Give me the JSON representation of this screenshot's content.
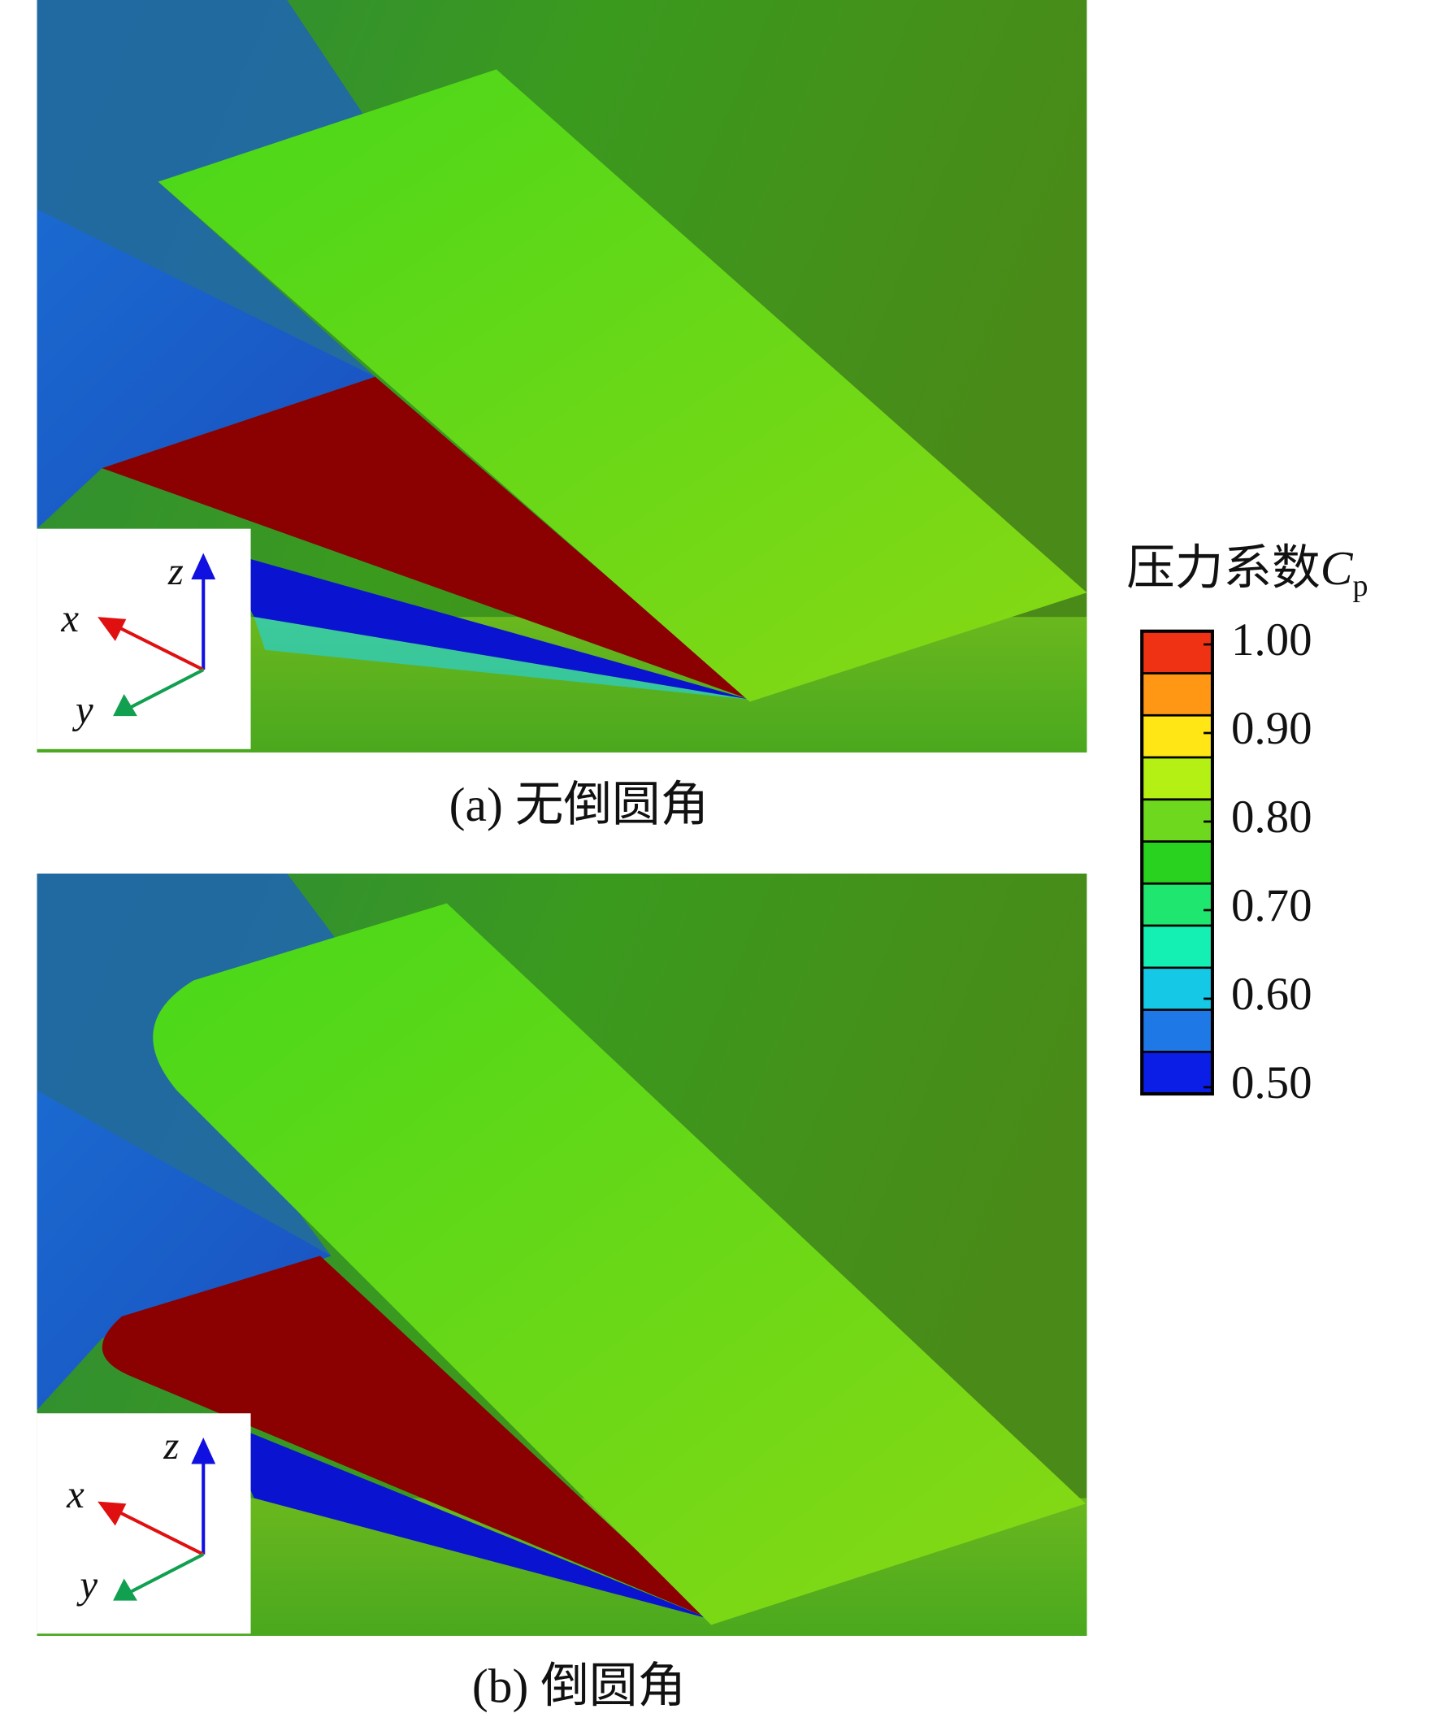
{
  "panels": [
    {
      "caption": "(a) 无倒圆角"
    },
    {
      "caption": "(b) 倒圆角"
    }
  ],
  "axes_labels": {
    "x": "x",
    "y": "y",
    "z": "z"
  },
  "colorbar": {
    "title": "压力系数",
    "symbol": "C",
    "subscript": "p",
    "lim": [
      0.5,
      1.0
    ],
    "ticks": [
      {
        "value": 1.0,
        "label": "1.00"
      },
      {
        "value": 0.9,
        "label": "0.90"
      },
      {
        "value": 0.8,
        "label": "0.80"
      },
      {
        "value": 0.7,
        "label": "0.70"
      },
      {
        "value": 0.6,
        "label": "0.60"
      },
      {
        "value": 0.5,
        "label": "0.50"
      }
    ],
    "colors": [
      "#0a1ee6",
      "#1e78e6",
      "#14c8e6",
      "#14f0b4",
      "#1ee66e",
      "#28d21e",
      "#6ed81e",
      "#b4f014",
      "#ffe614",
      "#ff9614",
      "#f03214"
    ]
  }
}
